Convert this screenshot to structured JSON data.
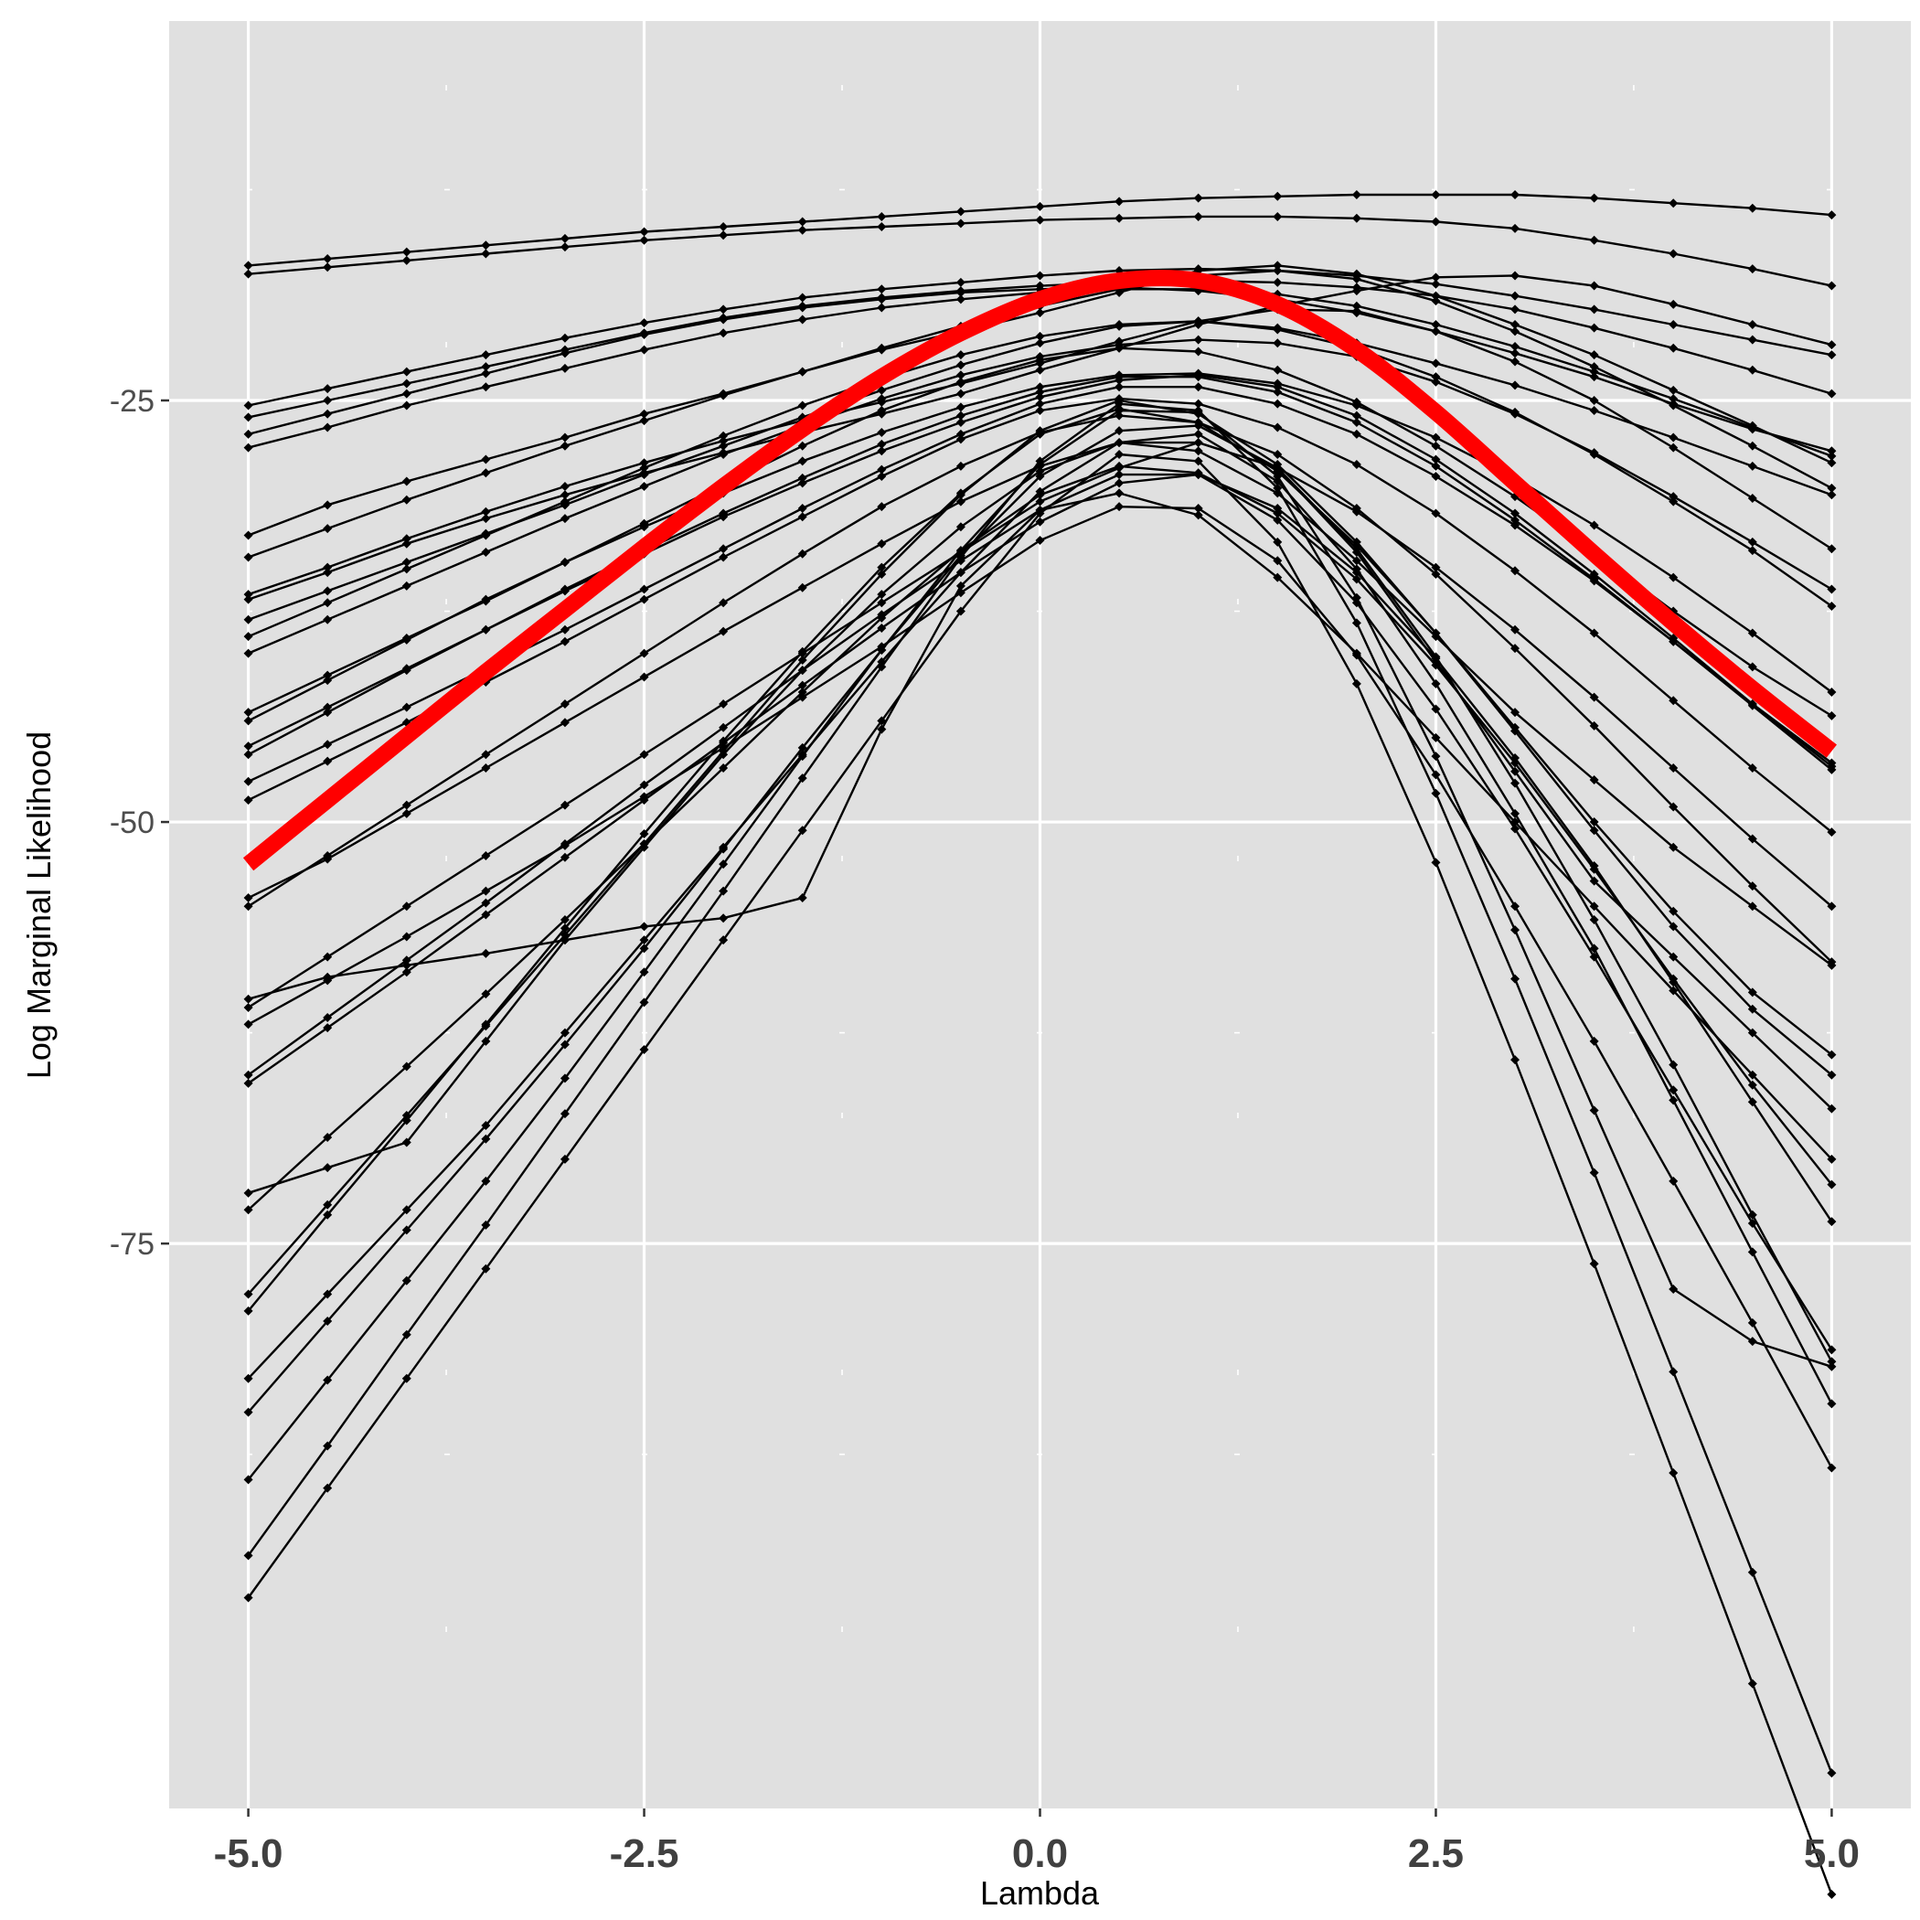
{
  "chart_data": {
    "type": "line",
    "xlabel": "Lambda",
    "ylabel": "Log Marginal Likelihood",
    "xlim": [
      -5.5,
      5.5
    ],
    "ylim": [
      -108.5,
      -2.5
    ],
    "x_ticks": [
      -5.0,
      -2.5,
      0.0,
      2.5,
      5.0
    ],
    "x_tick_labels": [
      "-5.0",
      "-2.5",
      "0.0",
      "2.5",
      "5.0"
    ],
    "y_ticks": [
      -25,
      -50,
      -75
    ],
    "y_tick_labels": [
      "-25",
      "-50",
      "-75"
    ],
    "x": [
      -5.0,
      -4.5,
      -4.0,
      -3.5,
      -3.0,
      -2.5,
      -2.0,
      -1.5,
      -1.0,
      -0.5,
      0.0,
      0.5,
      1.0,
      1.5,
      2.0,
      2.5,
      3.0,
      3.5,
      4.0,
      4.5,
      5.0
    ],
    "grid": true,
    "background": "#e0e0e0",
    "grid_color": "#ffffff",
    "series": [
      {
        "values": [
          -17.0,
          -16.6,
          -16.2,
          -15.8,
          -15.4,
          -15.0,
          -14.7,
          -14.4,
          -14.1,
          -13.8,
          -13.5,
          -13.2,
          -13.0,
          -12.9,
          -12.8,
          -12.8,
          -12.8,
          -13.0,
          -13.3,
          -13.6,
          -14.0
        ]
      },
      {
        "values": [
          -17.5,
          -17.1,
          -16.7,
          -16.3,
          -15.9,
          -15.5,
          -15.2,
          -14.9,
          -14.7,
          -14.5,
          -14.3,
          -14.2,
          -14.1,
          -14.1,
          -14.2,
          -14.4,
          -14.8,
          -15.5,
          -16.3,
          -17.2,
          -18.2
        ]
      },
      {
        "values": [
          -25.3,
          -24.3,
          -23.3,
          -22.3,
          -21.3,
          -20.4,
          -19.6,
          -18.9,
          -18.4,
          -18.0,
          -17.6,
          -17.3,
          -17.2,
          -17.3,
          -17.6,
          -18.1,
          -18.8,
          -19.6,
          -20.5,
          -21.4,
          -22.3
        ]
      },
      {
        "values": [
          -26.0,
          -25.0,
          -24.0,
          -23.0,
          -22.0,
          -21.0,
          -20.1,
          -19.4,
          -18.9,
          -18.5,
          -18.2,
          -18.0,
          -17.9,
          -18.0,
          -18.3,
          -18.8,
          -19.6,
          -20.7,
          -21.9,
          -23.2,
          -24.6
        ]
      },
      {
        "values": [
          -27.0,
          -25.8,
          -24.6,
          -23.4,
          -22.2,
          -21.1,
          -20.2,
          -19.5,
          -19.0,
          -18.6,
          -18.4,
          -18.3,
          -18.5,
          -19.0,
          -19.8,
          -20.9,
          -22.2,
          -23.6,
          -25.2,
          -26.7,
          -28.0
        ]
      },
      {
        "values": [
          -27.8,
          -26.6,
          -25.3,
          -24.2,
          -23.1,
          -22.0,
          -21.0,
          -20.2,
          -19.5,
          -19.0,
          -18.6,
          -18.4,
          -18.4,
          -18.7,
          -19.4,
          -20.5,
          -21.8,
          -23.3,
          -24.9,
          -26.6,
          -28.3
        ]
      },
      {
        "values": [
          -33.0,
          -31.2,
          -29.8,
          -28.5,
          -27.2,
          -25.8,
          -24.6,
          -23.3,
          -22.0,
          -20.9,
          -19.8,
          -18.6,
          -17.3,
          -17.0,
          -17.5,
          -18.8,
          -20.5,
          -22.3,
          -24.4,
          -26.5,
          -28.7
        ]
      },
      {
        "values": [
          -34.3,
          -32.6,
          -30.9,
          -29.3,
          -27.7,
          -26.2,
          -24.7,
          -23.3,
          -21.9,
          -20.6,
          -19.4,
          -18.4,
          -17.6,
          -17.3,
          -17.8,
          -19.1,
          -20.9,
          -23.0,
          -25.3,
          -27.7,
          -30.2
        ]
      },
      {
        "values": [
          -36.8,
          -35.2,
          -33.5,
          -32.0,
          -30.6,
          -29.3,
          -28.1,
          -26.9,
          -25.8,
          -24.6,
          -23.2,
          -21.9,
          -20.5,
          -19.4,
          -18.5,
          -17.7,
          -17.6,
          -18.2,
          -19.3,
          -20.5,
          -21.7
        ]
      },
      {
        "values": [
          -36.5,
          -34.9,
          -33.2,
          -31.6,
          -30.1,
          -28.7,
          -27.4,
          -26.2,
          -25.1,
          -24.0,
          -22.8,
          -21.5,
          -20.3,
          -19.6,
          -19.7,
          -20.9,
          -22.7,
          -25.0,
          -27.8,
          -30.8,
          -33.8
        ]
      },
      {
        "values": [
          -38.0,
          -36.3,
          -34.6,
          -32.9,
          -31.2,
          -29.4,
          -27.7,
          -26.0,
          -24.4,
          -22.9,
          -21.6,
          -20.6,
          -20.3,
          -20.8,
          -21.9,
          -23.6,
          -25.7,
          -28.2,
          -31.0,
          -33.9,
          -37.2
        ]
      },
      {
        "values": [
          -39.0,
          -37.0,
          -35.0,
          -33.0,
          -31.0,
          -29.0,
          -27.1,
          -25.3,
          -23.7,
          -22.3,
          -21.2,
          -20.5,
          -20.3,
          -20.7,
          -21.6,
          -22.8,
          -24.1,
          -25.6,
          -27.2,
          -28.9,
          -30.6
        ]
      },
      {
        "values": [
          -40.0,
          -38.0,
          -36.0,
          -34.0,
          -32.0,
          -30.1,
          -28.2,
          -26.5,
          -24.9,
          -23.5,
          -22.4,
          -21.7,
          -21.4,
          -21.6,
          -22.4,
          -23.9,
          -25.8,
          -28.1,
          -30.7,
          -33.4,
          -36.2
        ]
      },
      {
        "values": [
          -43.5,
          -41.3,
          -39.1,
          -36.9,
          -34.6,
          -32.3,
          -30.0,
          -27.7,
          -25.6,
          -23.9,
          -22.6,
          -21.9,
          -22.1,
          -23.2,
          -25.1,
          -27.7,
          -30.7,
          -34.0,
          -37.5,
          -40.8,
          -43.7
        ]
      },
      {
        "values": [
          -44.0,
          -41.6,
          -39.2,
          -36.8,
          -34.6,
          -32.5,
          -30.5,
          -28.6,
          -26.9,
          -25.4,
          -24.2,
          -23.5,
          -23.4,
          -24.0,
          -25.3,
          -27.2,
          -29.6,
          -32.4,
          -35.5,
          -38.8,
          -42.3
        ]
      },
      {
        "values": [
          -45.5,
          -43.2,
          -40.9,
          -38.6,
          -36.3,
          -34.1,
          -31.9,
          -29.9,
          -28.0,
          -26.3,
          -24.8,
          -23.8,
          -23.5,
          -24.2,
          -25.9,
          -28.5,
          -31.7,
          -35.3,
          -39.1,
          -43.0,
          -46.7
        ]
      },
      {
        "values": [
          -46.0,
          -43.5,
          -41.0,
          -38.6,
          -36.2,
          -33.9,
          -31.7,
          -29.6,
          -27.6,
          -25.9,
          -24.5,
          -23.6,
          -23.6,
          -24.5,
          -26.3,
          -28.9,
          -32.1,
          -35.6,
          -39.3,
          -43.1,
          -46.9
        ]
      },
      {
        "values": [
          -47.6,
          -45.4,
          -43.2,
          -40.9,
          -38.6,
          -36.2,
          -33.8,
          -31.4,
          -29.1,
          -27.0,
          -25.2,
          -24.2,
          -24.2,
          -25.2,
          -27.0,
          -29.5,
          -32.4,
          -35.7,
          -39.3,
          -43.0,
          -46.5
        ]
      },
      {
        "values": [
          -48.7,
          -46.4,
          -44.1,
          -41.7,
          -39.3,
          -36.8,
          -34.3,
          -31.9,
          -29.5,
          -27.3,
          -25.6,
          -24.9,
          -25.2,
          -26.6,
          -28.8,
          -31.7,
          -35.1,
          -38.8,
          -42.8,
          -46.8,
          -50.6
        ]
      },
      {
        "values": [
          -54.5,
          -52.2,
          -49.5,
          -46.8,
          -44.1,
          -41.4,
          -38.7,
          -36.1,
          -33.5,
          -31.0,
          -28.9,
          -27.5,
          -27.5,
          -29.0,
          -31.6,
          -34.9,
          -38.6,
          -42.6,
          -46.8,
          -51.0,
          -55.0
        ]
      },
      {
        "values": [
          -55.0,
          -52.0,
          -49.0,
          -46.0,
          -43.0,
          -40.0,
          -37.0,
          -34.1,
          -31.3,
          -28.9,
          -26.9,
          -25.9,
          -26.3,
          -28.2,
          -31.4,
          -35.3,
          -39.7,
          -44.3,
          -49.1,
          -53.8,
          -58.3
        ]
      },
      {
        "values": [
          -60.5,
          -59.2,
          -58.5,
          -57.8,
          -57.0,
          -56.2,
          -55.7,
          -54.5,
          -44.5,
          -36.0,
          -31.5,
          -30.5,
          -31.8,
          -35.5,
          -40.0,
          -45.0,
          -50.0,
          -55.0,
          -60.0,
          -65.0,
          -70.0
        ]
      },
      {
        "values": [
          -61.0,
          -58.0,
          -55.0,
          -52.0,
          -49.0,
          -46.0,
          -43.0,
          -40.0,
          -37.0,
          -34.0,
          -31.0,
          -29.0,
          -27.5,
          -29.0,
          -34.0,
          -40.5,
          -47.0,
          -53.5,
          -58.0,
          -62.5,
          -67.0
        ]
      },
      {
        "values": [
          -62.0,
          -59.4,
          -56.8,
          -54.1,
          -51.4,
          -48.5,
          -45.6,
          -42.6,
          -39.6,
          -36.4,
          -33.3,
          -31.3,
          -31.4,
          -34.5,
          -40.1,
          -47.2,
          -55.0,
          -63.0,
          -71.3,
          -79.7,
          -88.3
        ]
      },
      {
        "values": [
          -65.0,
          -61.6,
          -58.2,
          -54.8,
          -51.3,
          -47.8,
          -44.4,
          -41.0,
          -37.7,
          -34.5,
          -31.5,
          -29.4,
          -29.4,
          -32.1,
          -37.0,
          -43.3,
          -50.4,
          -58.0,
          -65.9,
          -73.8,
          -81.3
        ]
      },
      {
        "values": [
          -65.5,
          -62.2,
          -58.9,
          -55.5,
          -52.1,
          -48.7,
          -45.3,
          -41.9,
          -38.5,
          -35.2,
          -32.2,
          -29.9,
          -29.4,
          -31.4,
          -35.2,
          -40.3,
          -46.2,
          -52.6,
          -59.5,
          -66.6,
          -73.7
        ]
      },
      {
        "values": [
          -73.0,
          -68.7,
          -64.5,
          -60.2,
          -55.8,
          -51.3,
          -46.8,
          -42.3,
          -37.9,
          -33.9,
          -30.6,
          -28.9,
          -29.3,
          -31.7,
          -35.6,
          -40.7,
          -46.5,
          -52.8,
          -59.3,
          -65.6,
          -71.5
        ]
      },
      {
        "values": [
          -72.0,
          -70.5,
          -69.0,
          -63.0,
          -57.0,
          -51.5,
          -46.0,
          -41.0,
          -36.5,
          -32.5,
          -29.2,
          -27.5,
          -28.0,
          -30.5,
          -34.5,
          -39.0,
          -43.5,
          -47.5,
          -51.5,
          -55.0,
          -58.5
        ]
      },
      {
        "values": [
          -78.0,
          -72.7,
          -67.4,
          -62.1,
          -56.7,
          -51.3,
          -45.8,
          -40.4,
          -35.3,
          -30.6,
          -26.8,
          -25.0,
          -25.8,
          -28.8,
          -33.4,
          -38.8,
          -44.6,
          -50.5,
          -56.2,
          -61.1,
          -65.0
        ]
      },
      {
        "values": [
          -79.0,
          -73.3,
          -67.7,
          -62.0,
          -56.3,
          -50.7,
          -45.2,
          -39.9,
          -34.9,
          -30.5,
          -27.0,
          -25.5,
          -26.3,
          -29.2,
          -33.6,
          -38.8,
          -44.4,
          -50.0,
          -55.3,
          -60.1,
          -63.8
        ]
      },
      {
        "values": [
          -83.0,
          -78.0,
          -73.0,
          -68.0,
          -62.5,
          -57.0,
          -51.5,
          -46.0,
          -40.5,
          -35.2,
          -30.4,
          -27.5,
          -27.0,
          -29.8,
          -35.0,
          -41.8,
          -49.5,
          -57.5,
          -66.5,
          -75.5,
          -84.5
        ]
      },
      {
        "values": [
          -85.0,
          -79.6,
          -74.2,
          -68.8,
          -63.2,
          -57.5,
          -51.6,
          -45.6,
          -39.8,
          -34.2,
          -29.5,
          -26.8,
          -26.5,
          -29.0,
          -33.8,
          -40.2,
          -47.7,
          -55.8,
          -64.4,
          -73.3,
          -82.0
        ]
      },
      {
        "values": [
          -89.0,
          -83.1,
          -77.2,
          -71.3,
          -65.2,
          -58.9,
          -52.5,
          -46.1,
          -39.8,
          -33.9,
          -28.8,
          -25.6,
          -25.7,
          -29.5,
          -36.7,
          -46.1,
          -56.4,
          -67.1,
          -77.7,
          -80.8,
          -82.3
        ]
      },
      {
        "values": [
          -93.5,
          -87.0,
          -80.4,
          -73.9,
          -67.3,
          -60.7,
          -54.1,
          -47.4,
          -40.8,
          -34.3,
          -28.6,
          -25.2,
          -25.6,
          -30.2,
          -38.2,
          -48.3,
          -59.3,
          -70.8,
          -82.6,
          -94.5,
          -106.4
        ]
      },
      {
        "values": [
          -96.0,
          -89.5,
          -83.0,
          -76.5,
          -70.0,
          -63.5,
          -57.0,
          -50.5,
          -44.0,
          -37.5,
          -31.7,
          -28.2,
          -28.6,
          -33.4,
          -41.8,
          -52.4,
          -64.1,
          -76.2,
          -88.6,
          -101.1,
          -113.6
        ]
      }
    ],
    "highlight": {
      "color": "#ff0000",
      "values": [
        -52.5,
        -48.7,
        -44.9,
        -41.1,
        -37.4,
        -33.7,
        -30.1,
        -26.7,
        -23.6,
        -21.0,
        -19.0,
        -17.9,
        -17.9,
        -19.3,
        -22.0,
        -25.7,
        -29.9,
        -34.1,
        -38.2,
        -42.1,
        -45.8
      ]
    }
  }
}
